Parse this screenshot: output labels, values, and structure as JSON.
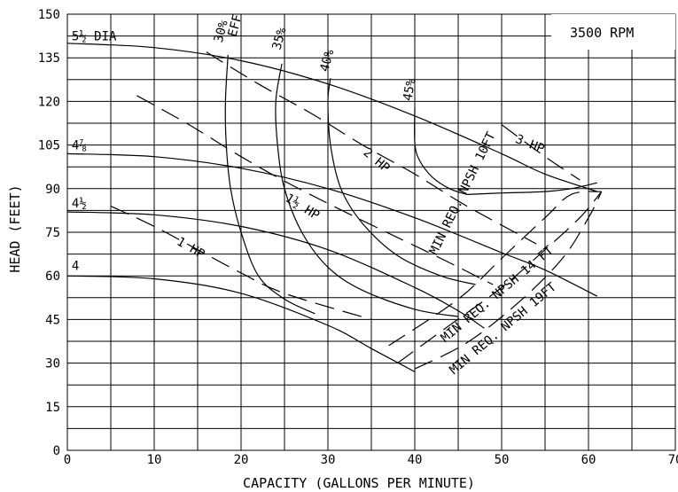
{
  "chart_data": {
    "type": "line",
    "xlabel": "CAPACITY (GALLONS PER MINUTE)",
    "ylabel": "HEAD (FEET)",
    "xlim": [
      0,
      70
    ],
    "ylim": [
      0,
      150
    ],
    "x_ticks": [
      "0",
      "10",
      "20",
      "30",
      "40",
      "50",
      "60",
      "70"
    ],
    "y_ticks": [
      "0",
      "15",
      "30",
      "45",
      "60",
      "75",
      "90",
      "105",
      "120",
      "135",
      "150"
    ],
    "grid": true,
    "annotation_rpm": "3500 RPM",
    "series": [
      {
        "name": "5½ DIA",
        "kind": "diameter",
        "x": [
          0,
          10,
          20,
          30,
          40,
          50,
          55,
          61
        ],
        "y": [
          140,
          138.5,
          134,
          126,
          115,
          102,
          95,
          89
        ]
      },
      {
        "name": "4⅞",
        "kind": "diameter",
        "x": [
          0,
          10,
          20,
          30,
          40,
          50,
          55,
          61
        ],
        "y": [
          102,
          101,
          97,
          90,
          80,
          68,
          62,
          53
        ]
      },
      {
        "name": "4½",
        "kind": "diameter",
        "x": [
          0,
          10,
          20,
          30,
          40,
          45,
          48
        ],
        "y": [
          82,
          81,
          77,
          69,
          56,
          48,
          42
        ]
      },
      {
        "name": "4",
        "kind": "diameter",
        "x": [
          0,
          10,
          20,
          30,
          35,
          40
        ],
        "y": [
          60,
          59,
          54,
          43,
          35,
          27
        ]
      },
      {
        "name": "30% EFF",
        "kind": "efficiency",
        "x": [
          18.5,
          18.2,
          18.3,
          18.8,
          20,
          22,
          25,
          28.5
        ],
        "y": [
          136,
          120,
          105,
          90,
          75,
          60,
          52,
          47
        ]
      },
      {
        "name": "35%",
        "kind": "efficiency",
        "x": [
          24.7,
          24,
          24.2,
          25,
          27,
          30,
          34,
          40,
          45
        ],
        "y": [
          133,
          120,
          105,
          90,
          75,
          63,
          55,
          48.5,
          46
        ]
      },
      {
        "name": "40%",
        "kind": "efficiency",
        "x": [
          30.3,
          30,
          30.3,
          31.5,
          34,
          38,
          43,
          47
        ],
        "y": [
          128,
          120,
          105,
          90,
          78,
          67,
          60,
          57
        ]
      },
      {
        "name": "45%",
        "kind": "efficiency",
        "x": [
          40,
          40,
          40.5,
          42,
          44,
          46
        ],
        "y": [
          118,
          106,
          100,
          94,
          90,
          88
        ]
      },
      {
        "name": "45%-b",
        "kind": "efficiency",
        "x": [
          46,
          50,
          55,
          58,
          61
        ],
        "y": [
          88,
          88.5,
          89,
          90,
          92
        ]
      },
      {
        "name": "MIN REQ. NPSH 10FT",
        "kind": "npsh",
        "x": [
          37,
          45,
          50,
          55,
          58,
          61.5
        ],
        "y": [
          36,
          52,
          66,
          80,
          88,
          89
        ]
      },
      {
        "name": "MIN REQ. NPSH 14 FT",
        "kind": "npsh",
        "x": [
          38,
          44,
          50,
          55,
          59,
          61.5
        ],
        "y": [
          30,
          43,
          56,
          69,
          80,
          89
        ]
      },
      {
        "name": "MIN REQ. NPSH 19FT",
        "kind": "npsh",
        "x": [
          40,
          46,
          52,
          57,
          60,
          61.5
        ],
        "y": [
          28,
          37,
          51,
          66,
          80,
          89
        ]
      },
      {
        "name": "1 HP",
        "kind": "horsepower",
        "x": [
          5,
          10,
          15,
          20,
          25,
          35
        ],
        "y": [
          84,
          77,
          69,
          61,
          54,
          45
        ]
      },
      {
        "name": "1½ HP",
        "kind": "horsepower",
        "x": [
          8,
          14,
          20,
          26,
          34,
          43,
          49
        ],
        "y": [
          122,
          112,
          101,
          91,
          79,
          66,
          57
        ]
      },
      {
        "name": "2 HP",
        "kind": "horsepower",
        "x": [
          16,
          22,
          28,
          34,
          40,
          46,
          54
        ],
        "y": [
          137,
          126,
          116,
          105,
          95,
          84,
          71
        ]
      },
      {
        "name": "3 HP",
        "kind": "horsepower",
        "x": [
          50,
          55,
          59
        ],
        "y": [
          112,
          101,
          93
        ]
      }
    ],
    "curve_labels": [
      {
        "text": "5½ DIA",
        "x": 0.5,
        "y": 141
      },
      {
        "text": "4⅞",
        "x": 0.5,
        "y": 103.5
      },
      {
        "text": "4½",
        "x": 0.5,
        "y": 83.5
      },
      {
        "text": "4",
        "x": 0.5,
        "y": 62
      },
      {
        "text": "30%",
        "x": 17.8,
        "y": 140
      },
      {
        "text": "EFF",
        "x": 19.4,
        "y": 142
      },
      {
        "text": "35%",
        "x": 24.5,
        "y": 137.5
      },
      {
        "text": "40%",
        "x": 30,
        "y": 130
      },
      {
        "text": "45%",
        "x": 39.6,
        "y": 120
      },
      {
        "text": "3 HP",
        "x": 51.5,
        "y": 106
      },
      {
        "text": "2 HP",
        "x": 34,
        "y": 102
      },
      {
        "text": "1½ HP",
        "x": 25,
        "y": 86
      },
      {
        "text": "1 HP",
        "x": 12.5,
        "y": 71
      },
      {
        "text": "MIN REQ. NPSH 10FT",
        "x": 42.5,
        "y": 67
      },
      {
        "text": "MIN REQ. NPSH 14 FT",
        "x": 43.5,
        "y": 37
      },
      {
        "text": "MIN REQ. NPSH 19FT",
        "x": 44.5,
        "y": 26
      }
    ]
  }
}
